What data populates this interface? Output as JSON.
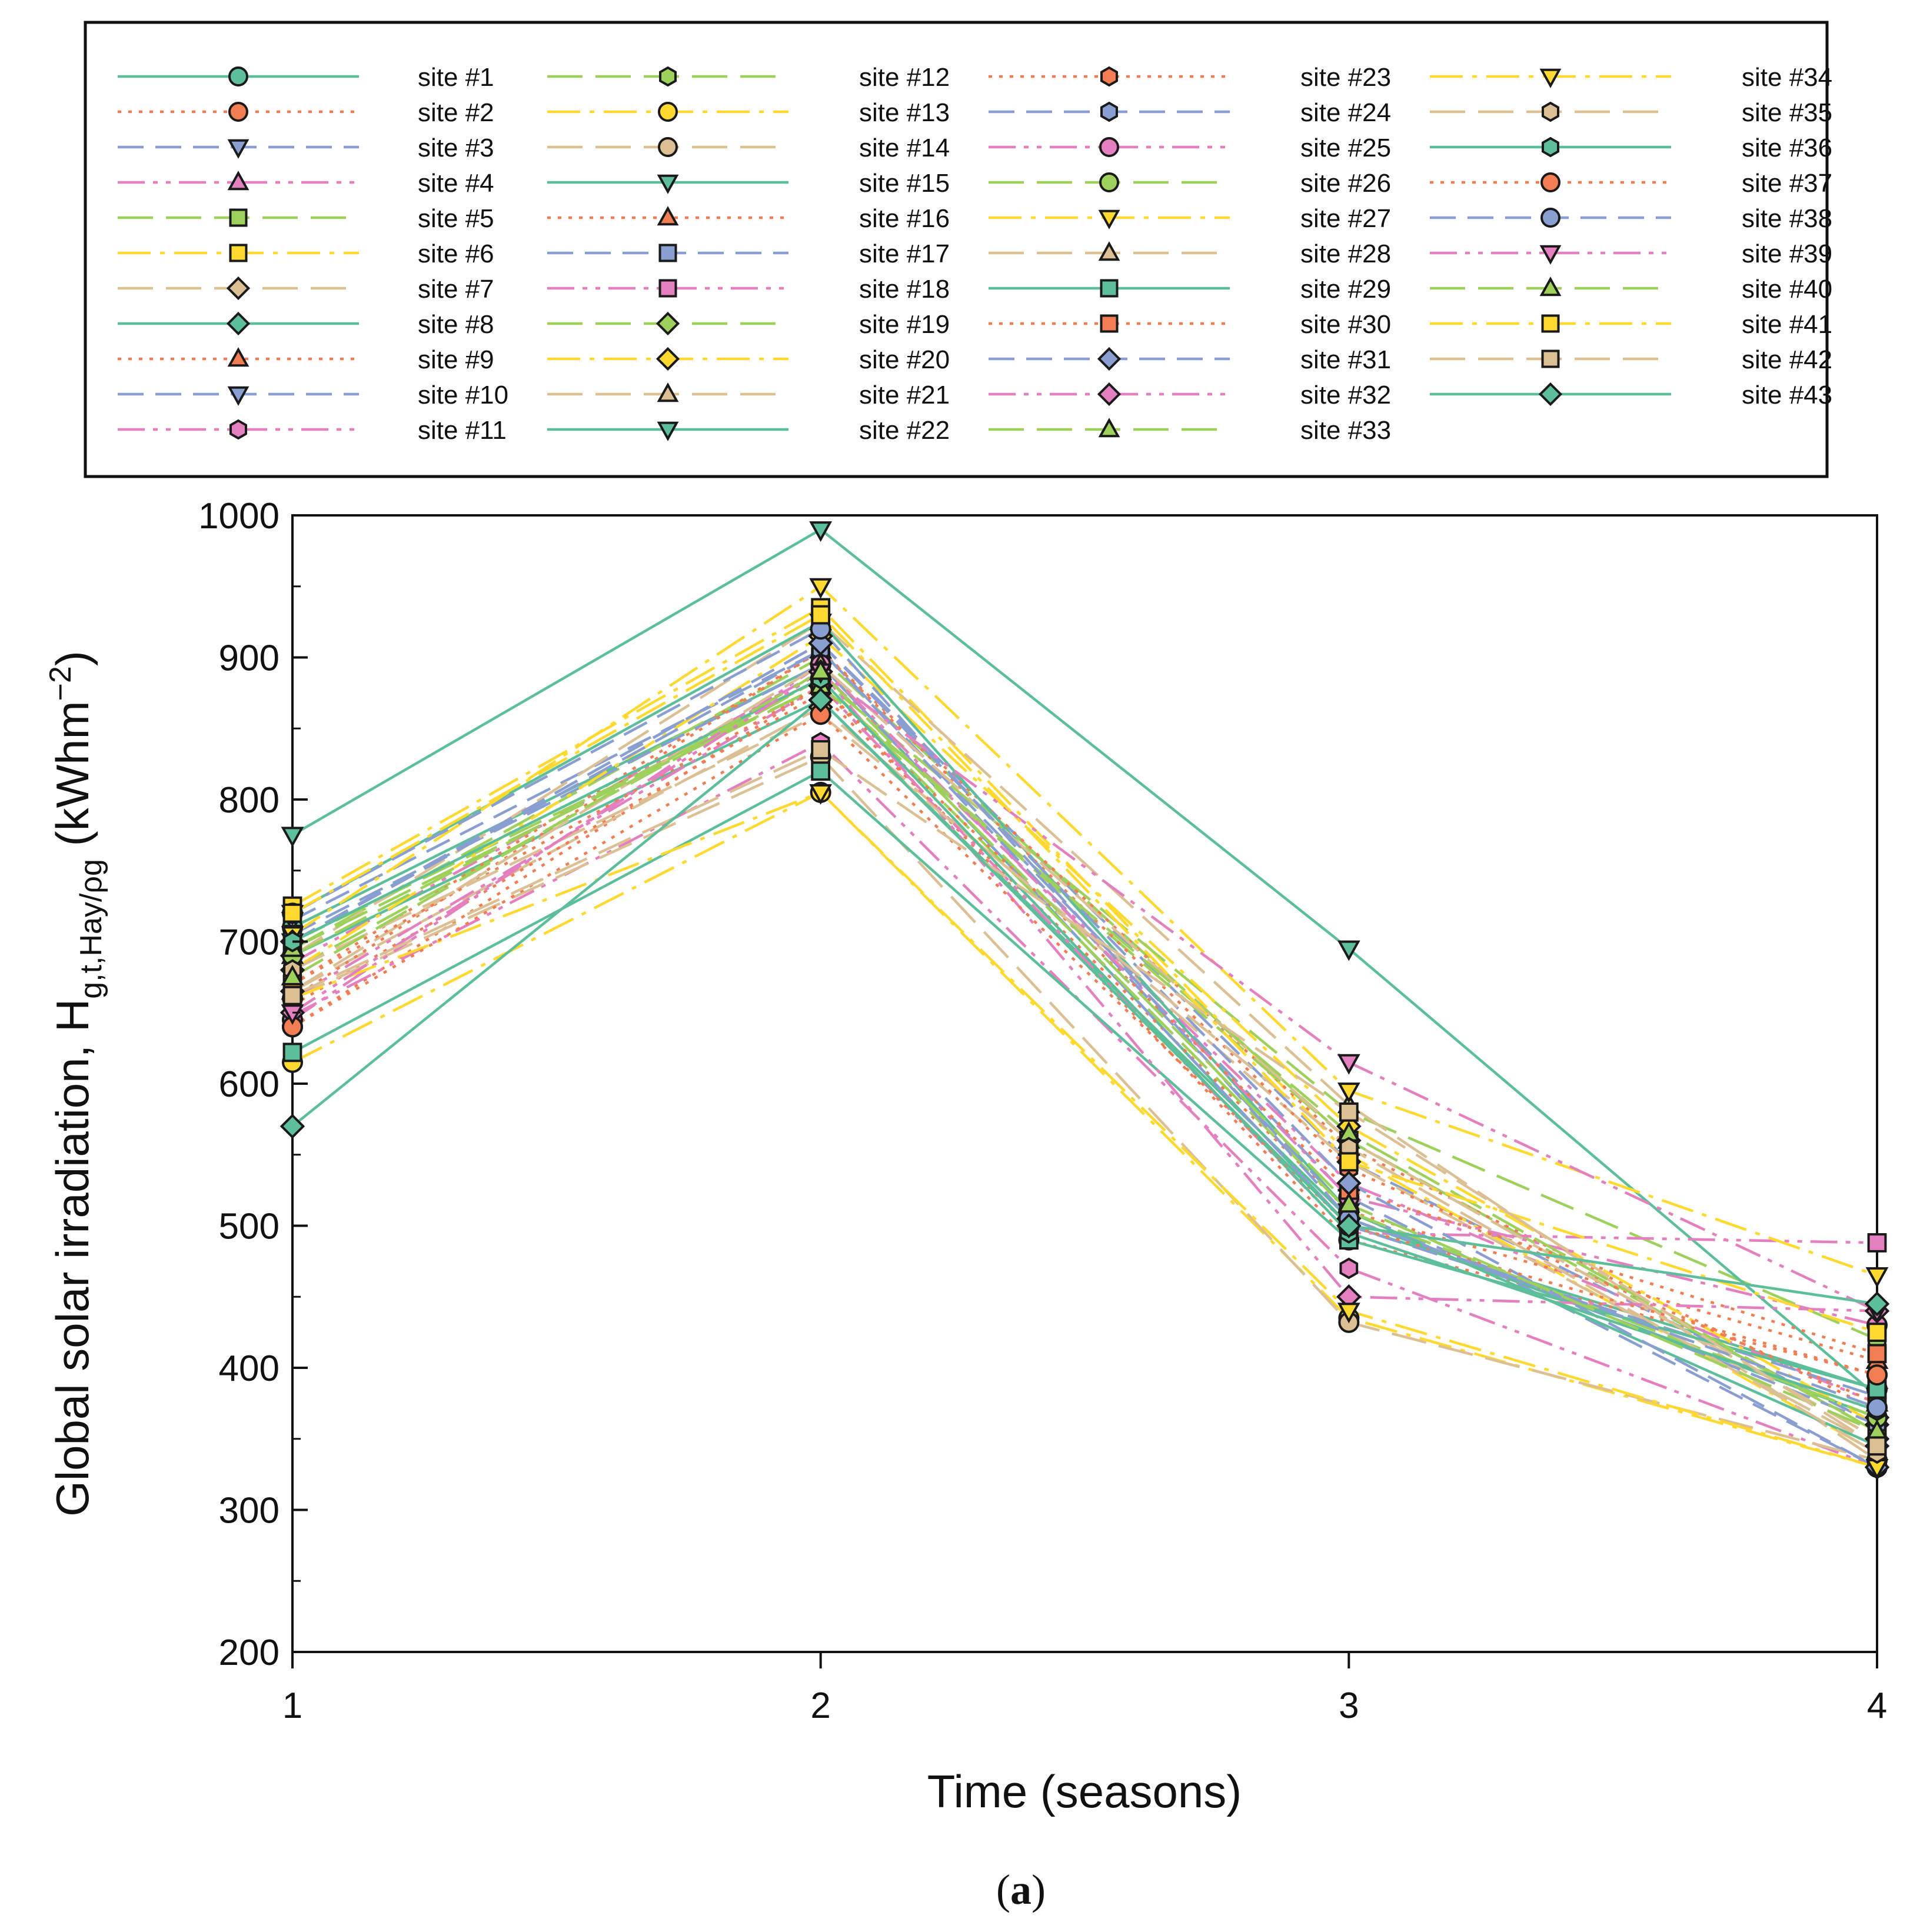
{
  "chart_data": {
    "type": "line",
    "xlabel": "Time (seasons)",
    "ylabel": {
      "main": "Global solar irradiation, H",
      "subscript": "g,t,Hay/ρg",
      "unit_open": " (kWhm",
      "unit_exp": "−2",
      "unit_close": ")"
    },
    "caption": {
      "open": "(",
      "letter": "a",
      "close": ")"
    },
    "x": [
      1,
      2,
      3,
      4
    ],
    "x_ticks": [
      "1",
      "2",
      "3",
      "4"
    ],
    "xlim": [
      1,
      4
    ],
    "ylim": [
      200,
      1000
    ],
    "y_ticks": [
      "200",
      "300",
      "400",
      "500",
      "600",
      "700",
      "800",
      "900",
      "1000"
    ],
    "grid": false,
    "legend_position": "top",
    "colors": {
      "teal": "#5dbf9a",
      "orange": "#f27d52",
      "blue": "#8a9fd1",
      "pink": "#e47fc0",
      "green": "#9ed15b",
      "yellow": "#ffd92f",
      "tan": "#ddbf94"
    },
    "series": [
      {
        "name": "site #1",
        "color": "#5dbf9a",
        "dash": "solid",
        "marker": "circle",
        "values": [
          710,
          895,
          500,
          385
        ]
      },
      {
        "name": "site #2",
        "color": "#f27d52",
        "dash": "dot",
        "marker": "circle",
        "values": [
          640,
          880,
          490,
          395
        ]
      },
      {
        "name": "site #3",
        "color": "#8a9fd1",
        "dash": "dash",
        "marker": "triangle-down",
        "values": [
          700,
          910,
          545,
          360
        ]
      },
      {
        "name": "site #4",
        "color": "#e47fc0",
        "dash": "dashdotdot",
        "marker": "triangle-up",
        "values": [
          685,
          890,
          530,
          375
        ]
      },
      {
        "name": "site #5",
        "color": "#9ed15b",
        "dash": "longdash",
        "marker": "square",
        "values": [
          695,
          900,
          560,
          355
        ]
      },
      {
        "name": "site #6",
        "color": "#ffd92f",
        "dash": "dashdot",
        "marker": "square",
        "values": [
          725,
          935,
          550,
          340
        ]
      },
      {
        "name": "site #7",
        "color": "#ddbf94",
        "dash": "longdash",
        "marker": "diamond",
        "values": [
          665,
          865,
          545,
          345
        ]
      },
      {
        "name": "site #8",
        "color": "#5dbf9a",
        "dash": "solid",
        "marker": "diamond",
        "values": [
          690,
          870,
          505,
          365
        ]
      },
      {
        "name": "site #9",
        "color": "#f27d52",
        "dash": "dot",
        "marker": "triangle-up",
        "values": [
          655,
          875,
          510,
          405
        ]
      },
      {
        "name": "site #10",
        "color": "#8a9fd1",
        "dash": "dash",
        "marker": "triangle-down",
        "values": [
          715,
          905,
          520,
          330
        ]
      },
      {
        "name": "site #11",
        "color": "#e47fc0",
        "dash": "dashdotdot",
        "marker": "hexagon",
        "values": [
          648,
          840,
          470,
          330
        ]
      },
      {
        "name": "site #12",
        "color": "#9ed15b",
        "dash": "longdash",
        "marker": "hexagon",
        "values": [
          680,
          885,
          580,
          420
        ]
      },
      {
        "name": "site #13",
        "color": "#ffd92f",
        "dash": "dashdot",
        "marker": "circle",
        "values": [
          615,
          805,
          435,
          330
        ]
      },
      {
        "name": "site #14",
        "color": "#ddbf94",
        "dash": "longdash",
        "marker": "circle",
        "values": [
          660,
          830,
          432,
          335
        ]
      },
      {
        "name": "site #15",
        "color": "#5dbf9a",
        "dash": "solid",
        "marker": "triangle-down",
        "values": [
          775,
          990,
          695,
          380
        ]
      },
      {
        "name": "site #16",
        "color": "#f27d52",
        "dash": "dot",
        "marker": "triangle-up",
        "values": [
          670,
          905,
          555,
          370
        ]
      },
      {
        "name": "site #17",
        "color": "#8a9fd1",
        "dash": "dash",
        "marker": "square",
        "values": [
          705,
          895,
          500,
          380
        ]
      },
      {
        "name": "site #18",
        "color": "#e47fc0",
        "dash": "dashdotdot",
        "marker": "square",
        "values": [
          660,
          880,
          495,
          488
        ]
      },
      {
        "name": "site #19",
        "color": "#9ed15b",
        "dash": "longdash",
        "marker": "diamond",
        "values": [
          700,
          880,
          560,
          350
        ]
      },
      {
        "name": "site #20",
        "color": "#ffd92f",
        "dash": "dashdot",
        "marker": "diamond",
        "values": [
          680,
          915,
          570,
          360
        ]
      },
      {
        "name": "site #21",
        "color": "#ddbf94",
        "dash": "longdash",
        "marker": "triangle-up",
        "values": [
          690,
          925,
          585,
          335
        ]
      },
      {
        "name": "site #22",
        "color": "#5dbf9a",
        "dash": "solid",
        "marker": "triangle-down",
        "values": [
          720,
          925,
          510,
          345
        ]
      },
      {
        "name": "site #23",
        "color": "#f27d52",
        "dash": "dot",
        "marker": "hexagon",
        "values": [
          660,
          905,
          540,
          375
        ]
      },
      {
        "name": "site #24",
        "color": "#8a9fd1",
        "dash": "dash",
        "marker": "hexagon",
        "values": [
          700,
          905,
          510,
          360
        ]
      },
      {
        "name": "site #25",
        "color": "#e47fc0",
        "dash": "dashdotdot",
        "marker": "circle",
        "values": [
          645,
          895,
          520,
          430
        ]
      },
      {
        "name": "site #26",
        "color": "#9ed15b",
        "dash": "longdash",
        "marker": "circle",
        "values": [
          690,
          885,
          510,
          365
        ]
      },
      {
        "name": "site #27",
        "color": "#ffd92f",
        "dash": "dashdot",
        "marker": "triangle-down",
        "values": [
          705,
          950,
          595,
          465
        ]
      },
      {
        "name": "site #28",
        "color": "#ddbf94",
        "dash": "longdash",
        "marker": "triangle-up",
        "values": [
          665,
          895,
          560,
          350
        ]
      },
      {
        "name": "site #29",
        "color": "#5dbf9a",
        "dash": "solid",
        "marker": "square",
        "values": [
          622,
          820,
          490,
          385
        ]
      },
      {
        "name": "site #30",
        "color": "#f27d52",
        "dash": "dot",
        "marker": "square",
        "values": [
          670,
          880,
          525,
          410
        ]
      },
      {
        "name": "site #31",
        "color": "#8a9fd1",
        "dash": "dash",
        "marker": "diamond",
        "values": [
          700,
          910,
          530,
          330
        ]
      },
      {
        "name": "site #32",
        "color": "#e47fc0",
        "dash": "dashdotdot",
        "marker": "diamond",
        "values": [
          650,
          890,
          450,
          440
        ]
      },
      {
        "name": "site #33",
        "color": "#9ed15b",
        "dash": "longdash",
        "marker": "triangle-up",
        "values": [
          695,
          880,
          565,
          355
        ]
      },
      {
        "name": "site #34",
        "color": "#ffd92f",
        "dash": "dashdot",
        "marker": "triangle-down",
        "values": [
          660,
          805,
          440,
          330
        ]
      },
      {
        "name": "site #35",
        "color": "#ddbf94",
        "dash": "longdash",
        "marker": "hexagon",
        "values": [
          680,
          860,
          555,
          340
        ]
      },
      {
        "name": "site #36",
        "color": "#5dbf9a",
        "dash": "solid",
        "marker": "hexagon",
        "values": [
          700,
          885,
          495,
          370
        ]
      },
      {
        "name": "site #37",
        "color": "#f27d52",
        "dash": "dot",
        "marker": "circle",
        "values": [
          640,
          860,
          500,
          395
        ]
      },
      {
        "name": "site #38",
        "color": "#8a9fd1",
        "dash": "dash",
        "marker": "circle",
        "values": [
          720,
          920,
          505,
          372
        ]
      },
      {
        "name": "site #39",
        "color": "#e47fc0",
        "dash": "dashdotdot",
        "marker": "triangle-down",
        "values": [
          650,
          890,
          615,
          440
        ]
      },
      {
        "name": "site #40",
        "color": "#9ed15b",
        "dash": "longdash",
        "marker": "triangle-up",
        "values": [
          675,
          890,
          515,
          355
        ]
      },
      {
        "name": "site #41",
        "color": "#ffd92f",
        "dash": "dashdot",
        "marker": "square",
        "values": [
          720,
          930,
          545,
          425
        ]
      },
      {
        "name": "site #42",
        "color": "#ddbf94",
        "dash": "longdash",
        "marker": "square",
        "values": [
          662,
          835,
          580,
          345
        ]
      },
      {
        "name": "site #43",
        "color": "#5dbf9a",
        "dash": "solid",
        "marker": "diamond",
        "values": [
          570,
          870,
          500,
          445
        ]
      }
    ]
  }
}
